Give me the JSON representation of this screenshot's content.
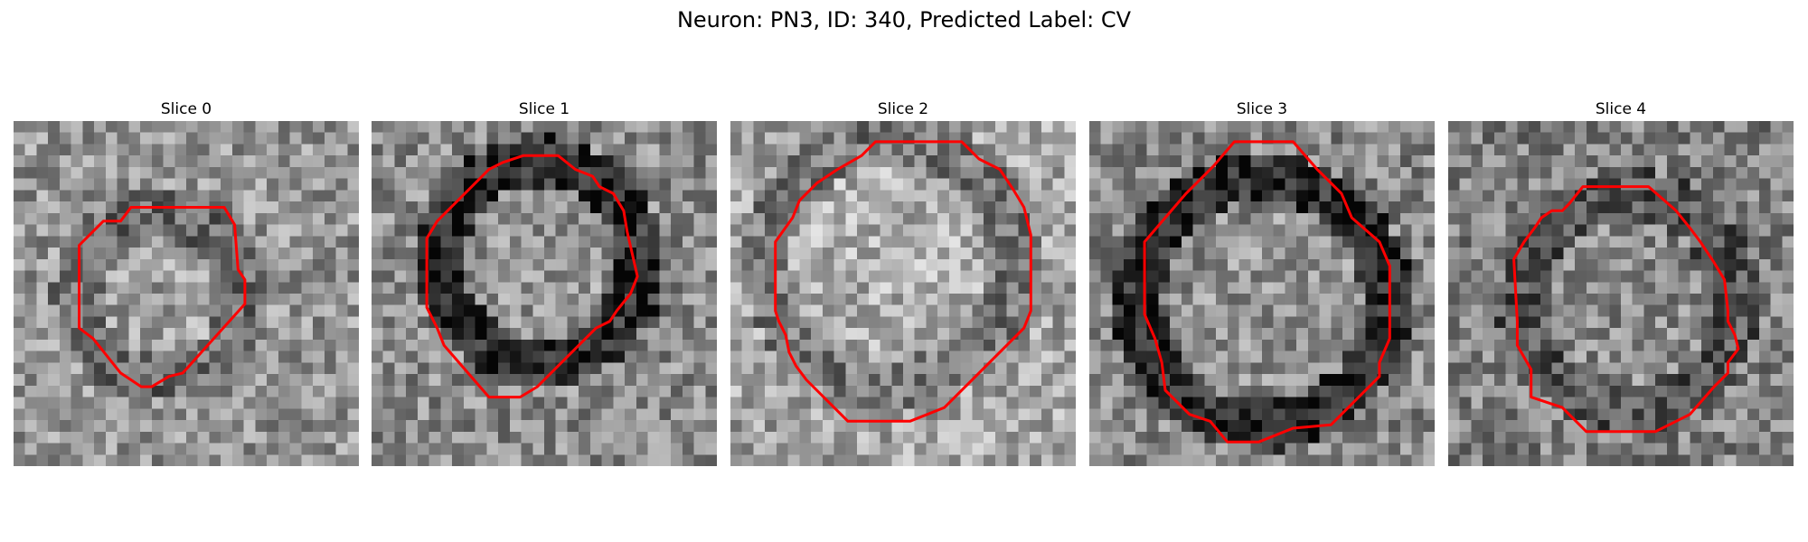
{
  "figure": {
    "title": "Neuron: PN3, ID: 340, Predicted Label: CV",
    "contour_color": "#ff0000"
  },
  "panels": [
    {
      "title": "Slice 0",
      "tone": {
        "base": 150,
        "dark_ring": false,
        "seed": 11
      },
      "contour": [
        [
          0.34,
          0.25
        ],
        [
          0.61,
          0.25
        ],
        [
          0.64,
          0.3
        ],
        [
          0.65,
          0.43
        ],
        [
          0.67,
          0.46
        ],
        [
          0.67,
          0.53
        ],
        [
          0.49,
          0.73
        ],
        [
          0.45,
          0.74
        ],
        [
          0.4,
          0.77
        ],
        [
          0.37,
          0.77
        ],
        [
          0.31,
          0.73
        ],
        [
          0.23,
          0.63
        ],
        [
          0.19,
          0.6
        ],
        [
          0.19,
          0.36
        ],
        [
          0.26,
          0.29
        ],
        [
          0.31,
          0.29
        ]
      ]
    },
    {
      "title": "Slice 1",
      "tone": {
        "base": 140,
        "dark_ring": true,
        "seed": 23
      },
      "contour": [
        [
          0.44,
          0.1
        ],
        [
          0.54,
          0.1
        ],
        [
          0.59,
          0.14
        ],
        [
          0.64,
          0.16
        ],
        [
          0.66,
          0.19
        ],
        [
          0.7,
          0.21
        ],
        [
          0.73,
          0.26
        ],
        [
          0.74,
          0.32
        ],
        [
          0.77,
          0.45
        ],
        [
          0.75,
          0.5
        ],
        [
          0.71,
          0.55
        ],
        [
          0.69,
          0.58
        ],
        [
          0.65,
          0.6
        ],
        [
          0.48,
          0.77
        ],
        [
          0.43,
          0.8
        ],
        [
          0.38,
          0.8
        ],
        [
          0.34,
          0.8
        ],
        [
          0.21,
          0.65
        ],
        [
          0.19,
          0.6
        ],
        [
          0.16,
          0.54
        ],
        [
          0.16,
          0.34
        ],
        [
          0.19,
          0.29
        ],
        [
          0.28,
          0.2
        ],
        [
          0.34,
          0.14
        ],
        [
          0.38,
          0.12
        ]
      ]
    },
    {
      "title": "Slice 2",
      "tone": {
        "base": 165,
        "dark_ring": false,
        "seed": 37
      },
      "contour": [
        [
          0.42,
          0.06
        ],
        [
          0.67,
          0.06
        ],
        [
          0.72,
          0.11
        ],
        [
          0.78,
          0.14
        ],
        [
          0.8,
          0.17
        ],
        [
          0.82,
          0.2
        ],
        [
          0.85,
          0.25
        ],
        [
          0.87,
          0.33
        ],
        [
          0.87,
          0.55
        ],
        [
          0.85,
          0.6
        ],
        [
          0.62,
          0.83
        ],
        [
          0.52,
          0.87
        ],
        [
          0.34,
          0.87
        ],
        [
          0.22,
          0.75
        ],
        [
          0.19,
          0.71
        ],
        [
          0.17,
          0.67
        ],
        [
          0.16,
          0.62
        ],
        [
          0.14,
          0.58
        ],
        [
          0.13,
          0.55
        ],
        [
          0.13,
          0.35
        ],
        [
          0.18,
          0.28
        ],
        [
          0.2,
          0.23
        ],
        [
          0.25,
          0.18
        ],
        [
          0.31,
          0.14
        ],
        [
          0.38,
          0.1
        ]
      ]
    },
    {
      "title": "Slice 3",
      "tone": {
        "base": 135,
        "dark_ring": true,
        "seed": 51
      },
      "contour": [
        [
          0.42,
          0.06
        ],
        [
          0.59,
          0.06
        ],
        [
          0.66,
          0.14
        ],
        [
          0.73,
          0.21
        ],
        [
          0.76,
          0.28
        ],
        [
          0.84,
          0.35
        ],
        [
          0.87,
          0.42
        ],
        [
          0.87,
          0.63
        ],
        [
          0.84,
          0.7
        ],
        [
          0.84,
          0.74
        ],
        [
          0.7,
          0.88
        ],
        [
          0.59,
          0.89
        ],
        [
          0.49,
          0.93
        ],
        [
          0.4,
          0.93
        ],
        [
          0.35,
          0.87
        ],
        [
          0.29,
          0.85
        ],
        [
          0.22,
          0.78
        ],
        [
          0.21,
          0.7
        ],
        [
          0.19,
          0.63
        ],
        [
          0.16,
          0.56
        ],
        [
          0.16,
          0.35
        ],
        [
          0.22,
          0.28
        ],
        [
          0.28,
          0.21
        ],
        [
          0.36,
          0.13
        ]
      ]
    },
    {
      "title": "Slice 4",
      "tone": {
        "base": 130,
        "dark_ring": false,
        "seed": 67
      },
      "contour": [
        [
          0.39,
          0.19
        ],
        [
          0.58,
          0.19
        ],
        [
          0.66,
          0.26
        ],
        [
          0.7,
          0.31
        ],
        [
          0.73,
          0.35
        ],
        [
          0.77,
          0.41
        ],
        [
          0.8,
          0.46
        ],
        [
          0.81,
          0.55
        ],
        [
          0.81,
          0.58
        ],
        [
          0.83,
          0.62
        ],
        [
          0.84,
          0.66
        ],
        [
          0.81,
          0.7
        ],
        [
          0.81,
          0.73
        ],
        [
          0.77,
          0.77
        ],
        [
          0.7,
          0.85
        ],
        [
          0.6,
          0.9
        ],
        [
          0.4,
          0.9
        ],
        [
          0.33,
          0.83
        ],
        [
          0.24,
          0.8
        ],
        [
          0.24,
          0.72
        ],
        [
          0.2,
          0.65
        ],
        [
          0.2,
          0.58
        ],
        [
          0.19,
          0.4
        ],
        [
          0.22,
          0.35
        ],
        [
          0.25,
          0.31
        ],
        [
          0.27,
          0.28
        ],
        [
          0.3,
          0.26
        ],
        [
          0.33,
          0.26
        ],
        [
          0.35,
          0.24
        ]
      ]
    }
  ]
}
